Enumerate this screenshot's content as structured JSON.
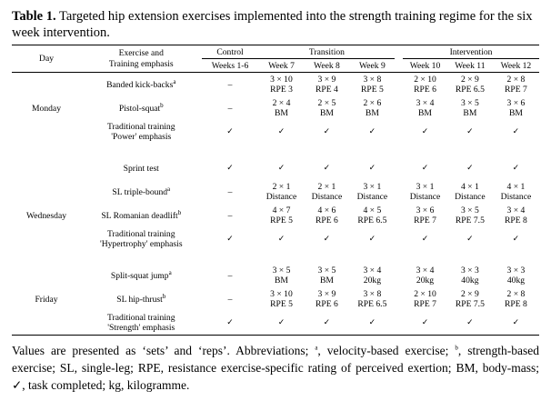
{
  "caption": {
    "label": "Table 1.",
    "text": " Targeted hip extension exercises implemented into the strength training regime for the six week intervention."
  },
  "headers": {
    "day": "Day",
    "exercise": "Exercise and Training emphasis",
    "control": "Control",
    "transition": "Transition",
    "intervention": "Intervention",
    "weeks": [
      "Weeks 1-6",
      "Week 7",
      "Week 8",
      "Week 9",
      "Week 10",
      "Week 11",
      "Week 12"
    ]
  },
  "rows": [
    {
      "day": "",
      "exercise": "Banded kick-backs",
      "sup": "a",
      "cells": [
        "–",
        "3 × 10\nRPE 3",
        "3 × 9\nRPE 4",
        "3 × 8\nRPE 5",
        "2 × 10\nRPE 6",
        "2 × 9\nRPE 6.5",
        "2 × 8\nRPE 7"
      ]
    },
    {
      "day": "Monday",
      "exercise": "Pistol-squat",
      "sup": "b",
      "cells": [
        "–",
        "2 × 4\nBM",
        "2 × 5\nBM",
        "2 × 6\nBM",
        "3 × 4\nBM",
        "3 × 5\nBM",
        "3 × 6\nBM"
      ]
    },
    {
      "day": "",
      "exercise": "Traditional training\n'Power' emphasis",
      "sup": "",
      "cells": [
        "✓",
        "✓",
        "✓",
        "✓",
        "✓",
        "✓",
        "✓"
      ]
    },
    {
      "day": "",
      "exercise": "Sprint test",
      "sup": "",
      "cells": [
        "✓",
        "✓",
        "✓",
        "✓",
        "✓",
        "✓",
        "✓"
      ]
    },
    {
      "day": "",
      "exercise": "SL triple-bound",
      "sup": "a",
      "cells": [
        "–",
        "2 × 1\nDistance",
        "2 × 1\nDistance",
        "3 × 1\nDistance",
        "3 × 1\nDistance",
        "4 × 1\nDistance",
        "4 × 1\nDistance"
      ]
    },
    {
      "day": "Wednesday",
      "exercise": "SL Romanian deadlift",
      "sup": "b",
      "cells": [
        "–",
        "4 × 7\nRPE 5",
        "4 × 6\nRPE 6",
        "4 × 5\nRPE 6.5",
        "3 × 6\nRPE 7",
        "3 × 5\nRPE 7.5",
        "3 × 4\nRPE 8"
      ]
    },
    {
      "day": "",
      "exercise": "Traditional training\n'Hypertrophy' emphasis",
      "sup": "",
      "cells": [
        "✓",
        "✓",
        "✓",
        "✓",
        "✓",
        "✓",
        "✓"
      ]
    },
    {
      "day": "",
      "exercise": "Split-squat jump",
      "sup": "a",
      "cells": [
        "–",
        "3 × 5\nBM",
        "3 × 5\nBM",
        "3 × 4\n20kg",
        "3 × 4\n20kg",
        "3 × 3\n40kg",
        "3 × 3\n40kg"
      ]
    },
    {
      "day": "Friday",
      "exercise": "SL hip-thrust",
      "sup": "b",
      "cells": [
        "–",
        "3 × 10\nRPE 5",
        "3 × 9\nRPE 6",
        "3 × 8\nRPE 6.5",
        "2 × 10\nRPE 7",
        "2 × 9\nRPE 7.5",
        "2 × 8\nRPE 8"
      ]
    },
    {
      "day": "",
      "exercise": "Traditional training\n'Strength' emphasis",
      "sup": "",
      "cells": [
        "✓",
        "✓",
        "✓",
        "✓",
        "✓",
        "✓",
        "✓"
      ]
    }
  ],
  "footer": {
    "text1": "Values are presented as ‘sets’ and ‘reps’. Abbreviations; ",
    "supA": "a",
    "text2": ", velocity-based exercise; ",
    "supB": "b",
    "text3": ", strength-based exercise; SL, single-leg; RPE, resistance exercise-specific rating of perceived exertion; BM, body-mass; ✓, task completed; kg, kilogramme."
  }
}
